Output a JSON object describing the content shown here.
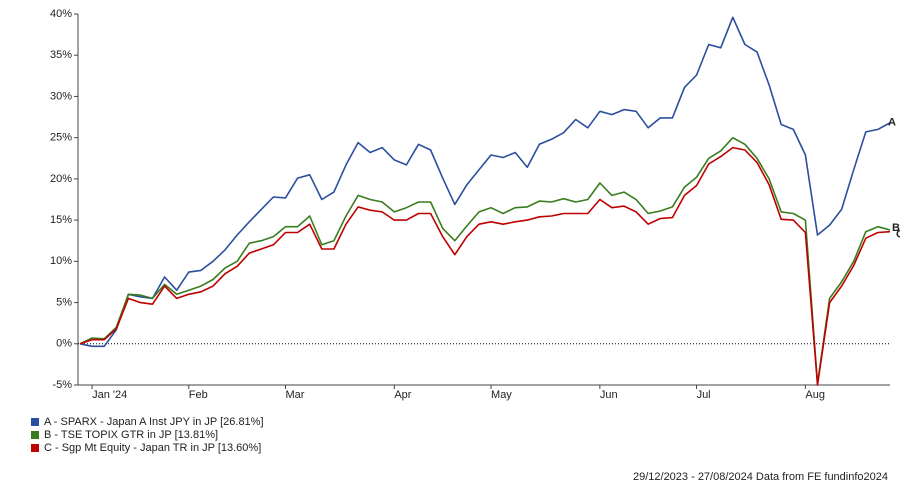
{
  "chart_data": {
    "type": "line",
    "categories": [
      null,
      "Jan '24",
      null,
      null,
      null,
      null,
      null,
      null,
      null,
      "Feb",
      null,
      null,
      null,
      null,
      null,
      null,
      null,
      "Mar",
      null,
      null,
      null,
      null,
      null,
      null,
      null,
      null,
      "Apr",
      null,
      null,
      null,
      null,
      null,
      null,
      null,
      "May",
      null,
      null,
      null,
      null,
      null,
      null,
      null,
      null,
      "Jun",
      null,
      null,
      null,
      null,
      null,
      null,
      null,
      "Jul",
      null,
      null,
      null,
      null,
      null,
      null,
      null,
      null,
      "Aug",
      null,
      null,
      null,
      null,
      null,
      null,
      null
    ],
    "series": [
      {
        "name": "A - SPARX - Japan A Inst JPY in JP [26.81%]",
        "label": "A",
        "color": "#2b4f9e",
        "values": [
          0,
          -0.3,
          -0.3,
          1.7,
          6,
          5.7,
          5.5,
          8.1,
          6.5,
          8.7,
          8.9,
          10,
          11.4,
          13.2,
          14.8,
          16.3,
          17.8,
          17.7,
          20.1,
          20.5,
          17.5,
          18.4,
          21.7,
          24.4,
          23.2,
          23.8,
          22.3,
          21.7,
          24.2,
          23.5,
          20.1,
          16.9,
          19.3,
          21.1,
          22.9,
          22.6,
          23.2,
          21.4,
          24.2,
          24.8,
          25.6,
          27.2,
          26.2,
          28.2,
          27.8,
          28.4,
          28.2,
          26.2,
          27.4,
          27.4,
          31.1,
          32.6,
          36.3,
          35.9,
          39.6,
          36.3,
          35.4,
          31.4,
          26.6,
          26,
          22.9,
          13.2,
          14.4,
          16.3,
          21.1,
          25.7,
          26,
          26.8
        ]
      },
      {
        "name": "B - TSE TOPIX GTR in JP [13.81%]",
        "label": "B",
        "color": "#3a7d1f",
        "values": [
          0,
          0.7,
          0.6,
          2,
          6,
          5.9,
          5.5,
          7.2,
          6,
          6.5,
          7,
          7.8,
          9.2,
          10,
          12.2,
          12.5,
          13,
          14.2,
          14.2,
          15.5,
          12,
          12.5,
          15.5,
          18,
          17.5,
          17.2,
          16,
          16.5,
          17.2,
          17.2,
          14,
          12.5,
          14.3,
          16,
          16.5,
          15.8,
          16.5,
          16.6,
          17.3,
          17.2,
          17.6,
          17.2,
          17.5,
          19.5,
          18,
          18.4,
          17.5,
          15.8,
          16.1,
          16.6,
          19,
          20.2,
          22.5,
          23.4,
          25,
          24.2,
          22.5,
          20,
          16,
          15.8,
          15,
          -4.8,
          5.5,
          7.5,
          10,
          13.6,
          14.2,
          13.8
        ]
      },
      {
        "name": "C - Sgp Mt Equity - Japan TR in JP [13.60%]",
        "label": "C",
        "color": "#c00000",
        "values": [
          0,
          0.5,
          0.5,
          1.8,
          5.5,
          5,
          4.8,
          7,
          5.5,
          6,
          6.3,
          7,
          8.5,
          9.4,
          11,
          11.5,
          12,
          13.5,
          13.5,
          14.5,
          11.5,
          11.5,
          14.5,
          16.6,
          16.2,
          16,
          15,
          15,
          15.8,
          15.8,
          13,
          10.8,
          13,
          14.5,
          14.8,
          14.5,
          14.8,
          15,
          15.4,
          15.5,
          15.8,
          15.8,
          15.8,
          17.5,
          16.5,
          16.7,
          16,
          14.5,
          15.2,
          15.3,
          18,
          19.2,
          21.8,
          22.7,
          23.8,
          23.5,
          22,
          19.3,
          15.1,
          15,
          13.5,
          -5,
          5,
          7,
          9.5,
          12.8,
          13.5,
          13.6
        ]
      }
    ],
    "ylim": [
      -5,
      40
    ],
    "yticks": [
      {
        "value": -5,
        "label": "-5%"
      },
      {
        "value": 0,
        "label": "0%"
      },
      {
        "value": 5,
        "label": "5%"
      },
      {
        "value": 10,
        "label": "10%"
      },
      {
        "value": 15,
        "label": "15%"
      },
      {
        "value": 20,
        "label": "20%"
      },
      {
        "value": 25,
        "label": "25%"
      },
      {
        "value": 30,
        "label": "30%"
      },
      {
        "value": 35,
        "label": "35%"
      },
      {
        "value": 40,
        "label": "40%"
      }
    ],
    "zero_line": true,
    "legend": "bottom-left",
    "footer": "29/12/2023 - 27/08/2024 Data from FE fundinfo2024"
  }
}
